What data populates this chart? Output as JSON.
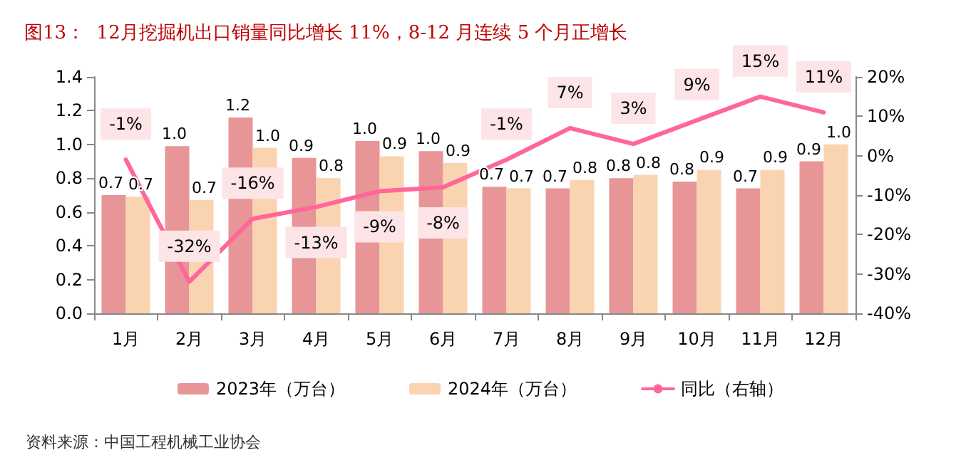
{
  "chart_data": {
    "type": "bar",
    "title": "图13：  12月挖掘机出口销量同比增长 11%，8-12 月连续 5 个月正增长",
    "annotations": [
      "资料来源：中国工程机械工业协会"
    ],
    "categories": [
      "1月",
      "2月",
      "3月",
      "4月",
      "5月",
      "6月",
      "7月",
      "8月",
      "9月",
      "10月",
      "11月",
      "12月"
    ],
    "series": [
      {
        "name": "2023年（万台）",
        "color": "#e89597",
        "values": [
          0.7,
          0.99,
          1.16,
          0.92,
          1.02,
          0.96,
          0.75,
          0.74,
          0.8,
          0.78,
          0.74,
          0.9
        ],
        "value_labels": [
          "0.7",
          "1.0",
          "1.2",
          "0.9",
          "1.0",
          "1.0",
          "0.7",
          "0.7",
          "0.8",
          "0.8",
          "0.7",
          "0.9"
        ]
      },
      {
        "name": "2024年（万台）",
        "color": "#fad3b0",
        "values": [
          0.69,
          0.67,
          0.98,
          0.8,
          0.93,
          0.89,
          0.74,
          0.79,
          0.82,
          0.85,
          0.85,
          1.0
        ],
        "value_labels": [
          "0.7",
          "0.7",
          "1.0",
          "0.8",
          "0.9",
          "0.9",
          "0.7",
          "0.8",
          "0.8",
          "0.9",
          "0.9",
          "1.0"
        ]
      },
      {
        "name": "同比（右轴）",
        "type": "line",
        "axis": "y2",
        "color": "#ff6699",
        "values": [
          -1,
          -32,
          -16,
          -13,
          -9,
          -8,
          -1,
          7,
          3,
          9,
          15,
          11
        ],
        "value_labels": [
          "-1%",
          "-32%",
          "-16%",
          "-13%",
          "-9%",
          "-8%",
          "-1%",
          "7%",
          "3%",
          "9%",
          "15%",
          "11%"
        ]
      }
    ],
    "ylim": [
      0,
      1.4
    ],
    "yticks": [
      {
        "value": 0,
        "label": "0.0"
      },
      {
        "value": 0.2,
        "label": "0.2"
      },
      {
        "value": 0.4,
        "label": "0.4"
      },
      {
        "value": 0.6,
        "label": "0.6"
      },
      {
        "value": 0.8,
        "label": "0.8"
      },
      {
        "value": 1.0,
        "label": "1.0"
      },
      {
        "value": 1.2,
        "label": "1.2"
      },
      {
        "value": 1.4,
        "label": "1.4"
      }
    ],
    "y2lim": [
      -40,
      20
    ],
    "y2ticks": [
      {
        "value": -40,
        "label": "-40%"
      },
      {
        "value": -30,
        "label": "-30%"
      },
      {
        "value": -20,
        "label": "-20%"
      },
      {
        "value": -10,
        "label": "-10%"
      },
      {
        "value": 0,
        "label": "0%"
      },
      {
        "value": 10,
        "label": "10%"
      },
      {
        "value": 20,
        "label": "20%"
      }
    ],
    "legend": "bottom",
    "grid": false,
    "marker": "none",
    "line_style": "solid"
  }
}
